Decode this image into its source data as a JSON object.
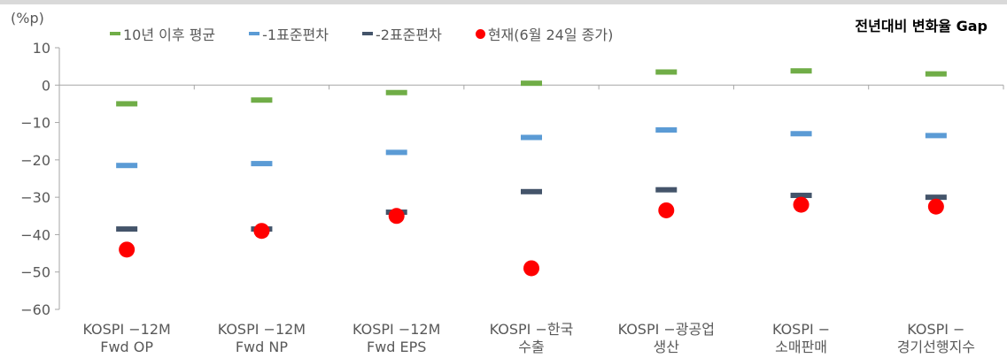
{
  "title": "전년대비 변화율 Gap",
  "unit": "(%p)",
  "legend": [
    {
      "label": "10년 이후 평균",
      "color": "#70ad47",
      "kind": "dash"
    },
    {
      "label": "-1표준편차",
      "color": "#5b9bd5",
      "kind": "dash"
    },
    {
      "label": "-2표준편차",
      "color": "#44546a",
      "kind": "dash"
    },
    {
      "label": "현재(6월 24일 종가)",
      "color": "#ff0000",
      "kind": "dot"
    }
  ],
  "chart_data": {
    "type": "scatter",
    "ylabel": "(%p)",
    "ylim": [
      -60,
      10
    ],
    "yticks": [
      10,
      0,
      -10,
      -20,
      -30,
      -40,
      -50,
      -60
    ],
    "categories": [
      [
        "KOSPI -12M",
        "Fwd OP"
      ],
      [
        "KOSPI -12M",
        "Fwd NP"
      ],
      [
        "KOSPI -12M",
        "Fwd EPS"
      ],
      [
        "KOSPI -한국",
        "수출"
      ],
      [
        "KOSPI -광공업",
        "생산"
      ],
      [
        "KOSPI -",
        "소매판매"
      ],
      [
        "KOSPI -",
        "경기선행지수"
      ]
    ],
    "series": [
      {
        "name": "10년 이후 평균",
        "color": "#70ad47",
        "marker": "dash",
        "values": [
          -5,
          -4,
          -2,
          0.5,
          3.5,
          3.8,
          3
        ]
      },
      {
        "name": "-1표준편차",
        "color": "#5b9bd5",
        "marker": "dash",
        "values": [
          -21.5,
          -21,
          -18,
          -14,
          -12,
          -13,
          -13.5
        ]
      },
      {
        "name": "-2표준편차",
        "color": "#44546a",
        "marker": "dash",
        "values": [
          -38.5,
          -38.5,
          -34,
          -28.5,
          -28,
          -29.5,
          -30
        ]
      },
      {
        "name": "현재(6월 24일 종가)",
        "color": "#ff0000",
        "marker": "dot",
        "values": [
          -44,
          -39,
          -35,
          -49,
          -33.5,
          -32,
          -32.5
        ]
      }
    ]
  }
}
